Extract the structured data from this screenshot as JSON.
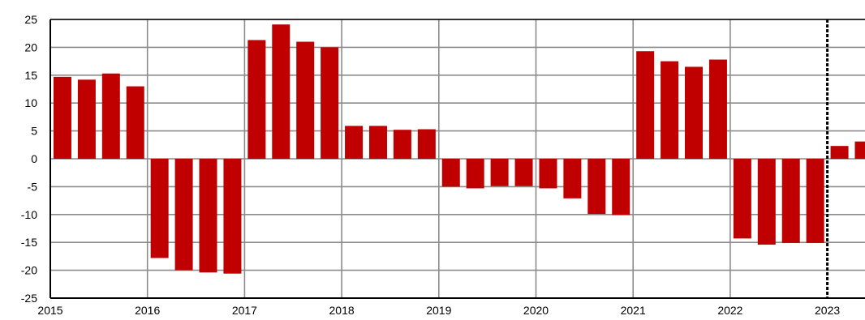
{
  "chart_data": {
    "type": "bar",
    "title": "",
    "xlabel": "",
    "ylabel": "",
    "ylim": [
      -25,
      25
    ],
    "yticks": [
      25,
      20,
      15,
      10,
      5,
      0,
      -5,
      -10,
      -15,
      -20,
      -25
    ],
    "grid": true,
    "bar_color": "#c00000",
    "year_labels": [
      "2015",
      "2016",
      "2017",
      "2018",
      "2019",
      "2020",
      "2021",
      "2022",
      "2023"
    ],
    "forecast_divider_before_year": "2023",
    "categories": [
      "2015 Q1",
      "2015 Q2",
      "2015 Q3",
      "2015 Q4",
      "2016 Q1",
      "2016 Q2",
      "2016 Q3",
      "2016 Q4",
      "2017 Q1",
      "2017 Q2",
      "2017 Q3",
      "2017 Q4",
      "2018 Q1",
      "2018 Q2",
      "2018 Q3",
      "2018 Q4",
      "2019 Q1",
      "2019 Q2",
      "2019 Q3",
      "2019 Q4",
      "2020 Q1",
      "2020 Q2",
      "2020 Q3",
      "2020 Q4",
      "2021 Q1",
      "2021 Q2",
      "2021 Q3",
      "2021 Q4",
      "2022 Q1",
      "2022 Q2",
      "2022 Q3",
      "2022 Q4",
      "2023 Q1",
      "2023 Q2"
    ],
    "values": [
      14.7,
      14.2,
      15.3,
      13.0,
      -17.8,
      -20.0,
      -20.4,
      -20.6,
      21.3,
      24.1,
      21.0,
      20.0,
      5.9,
      5.9,
      5.2,
      5.3,
      -5.0,
      -5.3,
      -4.9,
      -4.9,
      -5.3,
      -7.1,
      -9.9,
      -10.1,
      19.3,
      17.5,
      16.5,
      17.8,
      -14.3,
      -15.4,
      -15.1,
      -15.1,
      2.3,
      3.1
    ]
  }
}
